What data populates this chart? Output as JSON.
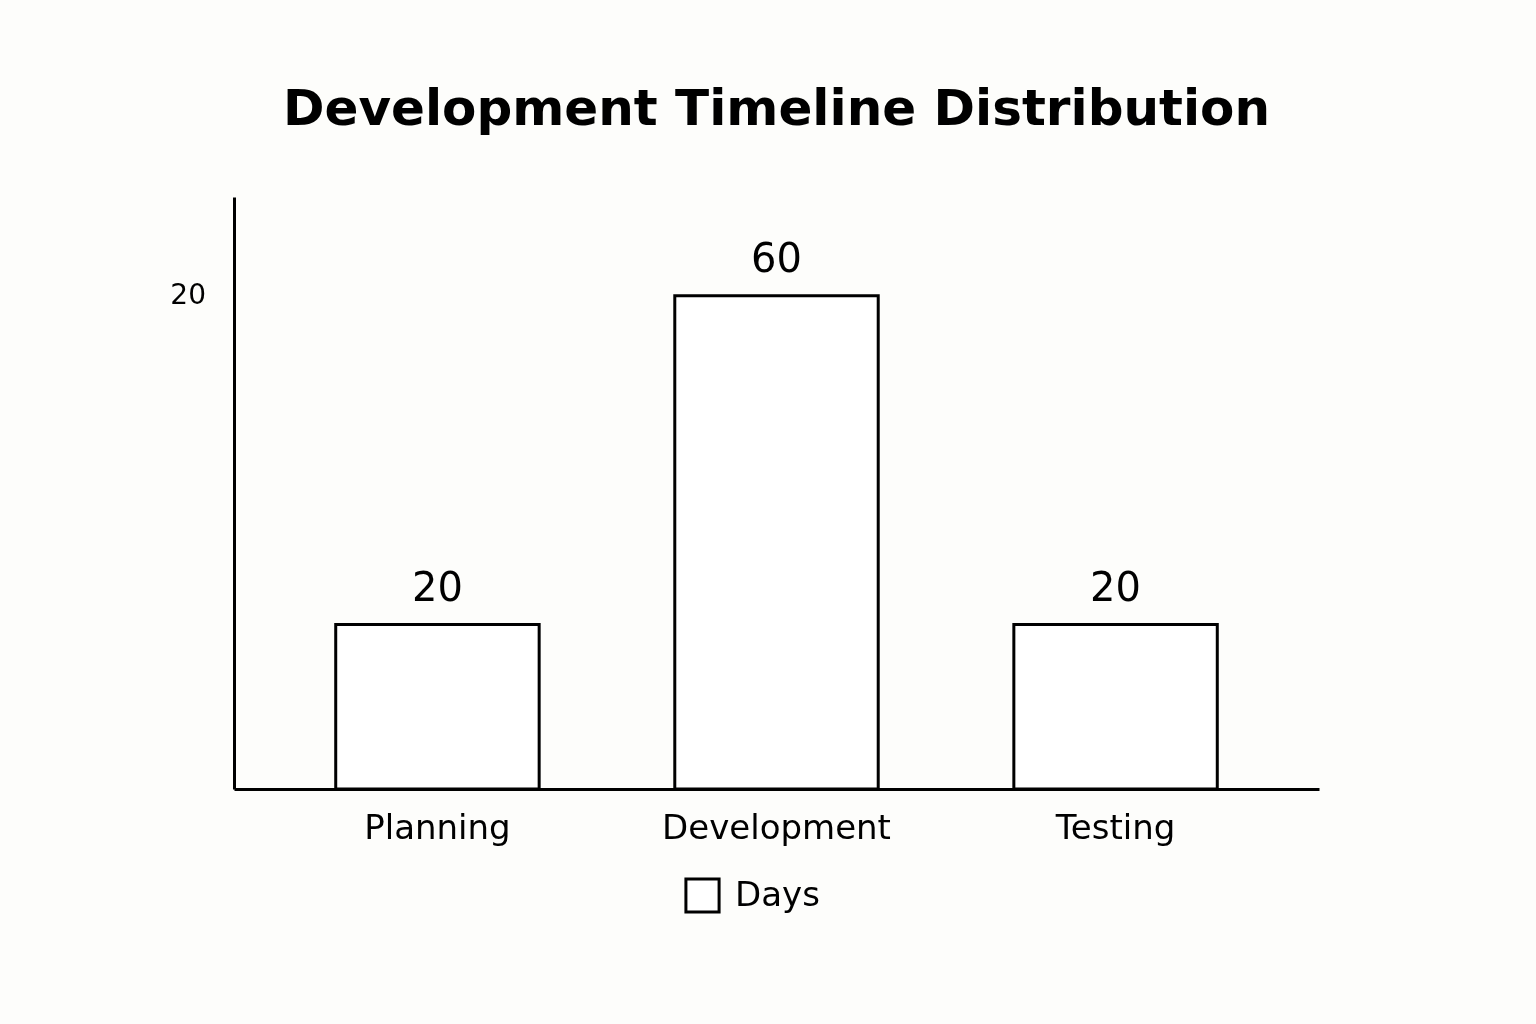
{
  "chart_data": {
    "type": "bar",
    "title": "Development Timeline Distribution",
    "categories": [
      "Planning",
      "Development",
      "Testing"
    ],
    "series": [
      {
        "name": "Days",
        "color": "#ffffff",
        "values": [
          20,
          60,
          20
        ]
      }
    ],
    "ylim": [
      0,
      72
    ],
    "annotations": [
      "20"
    ],
    "data_labels": true,
    "legend": "bottom"
  }
}
